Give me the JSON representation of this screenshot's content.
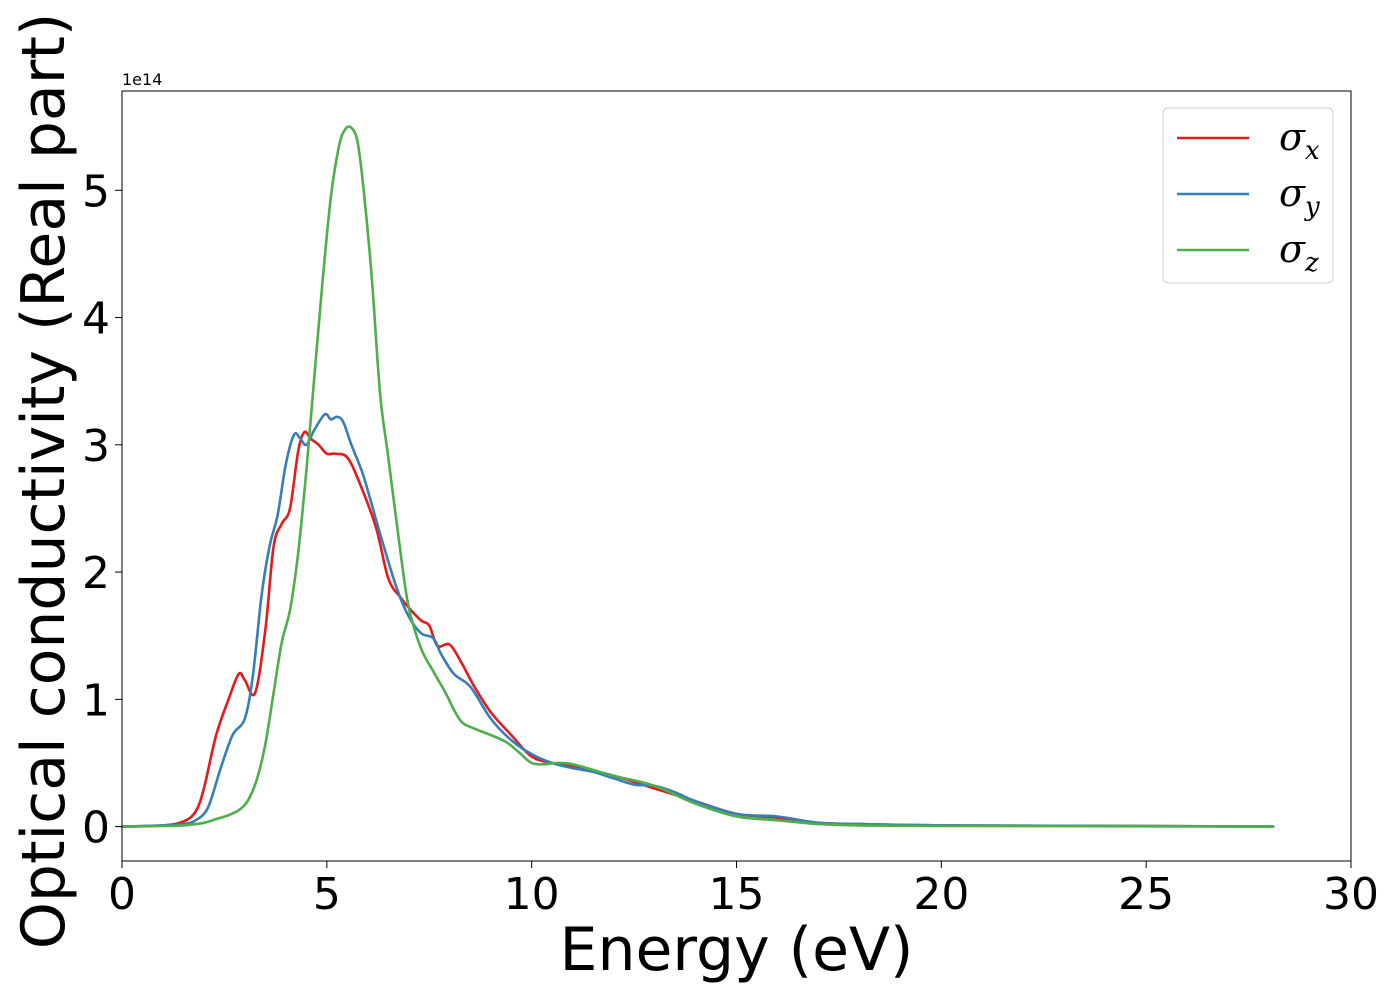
{
  "chart_data": {
    "type": "line",
    "title": "",
    "xlabel": "Energy (eV)",
    "ylabel": "Optical conductivity (Real part)",
    "y_offset_label": "1e14",
    "y_scale": 100000000000000.0,
    "xlim": [
      0,
      30
    ],
    "ylim": [
      -0.27,
      5.78
    ],
    "grid": false,
    "legend_position": "top-right",
    "x_ticks": [
      "0",
      "5",
      "10",
      "15",
      "20",
      "25",
      "30"
    ],
    "y_ticks": [
      "0",
      "1",
      "2",
      "3",
      "4",
      "5"
    ],
    "series": [
      {
        "name": "σx",
        "symbol": "σ",
        "subscript": "x",
        "color": "#e41a1c",
        "x": [
          0,
          1,
          1.5,
          1.8,
          2.0,
          2.3,
          2.6,
          2.85,
          3.0,
          3.25,
          3.5,
          3.7,
          3.9,
          4.1,
          4.3,
          4.45,
          4.6,
          4.8,
          5.0,
          5.2,
          5.5,
          5.8,
          6.2,
          6.5,
          6.8,
          7.0,
          7.3,
          7.5,
          7.7,
          8.0,
          8.3,
          8.6,
          9.0,
          9.5,
          10.0,
          10.5,
          11.0,
          12.0,
          13.0,
          14.0,
          15.0,
          16.0,
          17.0,
          18.0,
          20.0,
          25.0,
          28.1
        ],
        "values": [
          0,
          0.01,
          0.04,
          0.12,
          0.3,
          0.72,
          1.0,
          1.2,
          1.15,
          1.05,
          1.55,
          2.2,
          2.38,
          2.5,
          2.95,
          3.1,
          3.05,
          3.0,
          2.93,
          2.93,
          2.9,
          2.7,
          2.35,
          1.95,
          1.8,
          1.72,
          1.62,
          1.58,
          1.42,
          1.43,
          1.28,
          1.1,
          0.9,
          0.72,
          0.55,
          0.5,
          0.47,
          0.4,
          0.3,
          0.2,
          0.1,
          0.07,
          0.03,
          0.02,
          0.01,
          0.005,
          0.0
        ]
      },
      {
        "name": "σy",
        "symbol": "σ",
        "subscript": "y",
        "color": "#377eb8",
        "x": [
          0,
          1,
          1.5,
          1.8,
          2.1,
          2.4,
          2.7,
          3.0,
          3.2,
          3.4,
          3.6,
          3.8,
          4.0,
          4.2,
          4.35,
          4.5,
          4.7,
          4.95,
          5.1,
          5.25,
          5.4,
          5.6,
          5.9,
          6.3,
          6.7,
          7.0,
          7.3,
          7.6,
          7.8,
          8.1,
          8.5,
          9.0,
          9.5,
          10.0,
          10.5,
          11.0,
          11.5,
          12.0,
          12.5,
          13.0,
          13.5,
          14.0,
          15.0,
          16.0,
          17.0,
          18.0,
          20.0,
          25.0,
          28.1
        ],
        "values": [
          0,
          0.01,
          0.02,
          0.05,
          0.15,
          0.45,
          0.72,
          0.85,
          1.2,
          1.8,
          2.2,
          2.45,
          2.85,
          3.08,
          3.05,
          3.0,
          3.12,
          3.24,
          3.2,
          3.22,
          3.18,
          3.0,
          2.75,
          2.3,
          1.88,
          1.65,
          1.52,
          1.48,
          1.35,
          1.2,
          1.1,
          0.85,
          0.68,
          0.57,
          0.5,
          0.46,
          0.43,
          0.38,
          0.33,
          0.32,
          0.27,
          0.2,
          0.1,
          0.08,
          0.03,
          0.02,
          0.01,
          0.005,
          0.0
        ]
      },
      {
        "name": "σz",
        "symbol": "σ",
        "subscript": "z",
        "color": "#4daf4a",
        "x": [
          0,
          1,
          1.5,
          2.0,
          2.3,
          2.6,
          2.9,
          3.1,
          3.3,
          3.5,
          3.7,
          3.9,
          4.1,
          4.3,
          4.5,
          4.7,
          4.9,
          5.1,
          5.3,
          5.45,
          5.6,
          5.75,
          5.9,
          6.1,
          6.3,
          6.5,
          6.8,
          7.0,
          7.3,
          7.6,
          7.9,
          8.1,
          8.3,
          8.6,
          9.0,
          9.4,
          9.7,
          10.0,
          10.3,
          10.6,
          11.0,
          12.0,
          13.0,
          14.0,
          15.0,
          16.0,
          17.0,
          18.0,
          20.0,
          25.0,
          28.1
        ],
        "values": [
          0,
          0.005,
          0.01,
          0.03,
          0.06,
          0.09,
          0.14,
          0.22,
          0.38,
          0.65,
          1.05,
          1.45,
          1.7,
          2.15,
          2.8,
          3.55,
          4.3,
          4.95,
          5.35,
          5.48,
          5.49,
          5.38,
          5.0,
          4.3,
          3.4,
          2.9,
          2.15,
          1.72,
          1.4,
          1.22,
          1.05,
          0.92,
          0.82,
          0.77,
          0.72,
          0.66,
          0.58,
          0.5,
          0.49,
          0.5,
          0.49,
          0.4,
          0.32,
          0.18,
          0.08,
          0.05,
          0.02,
          0.01,
          0.005,
          0.003,
          0.0
        ]
      }
    ]
  }
}
